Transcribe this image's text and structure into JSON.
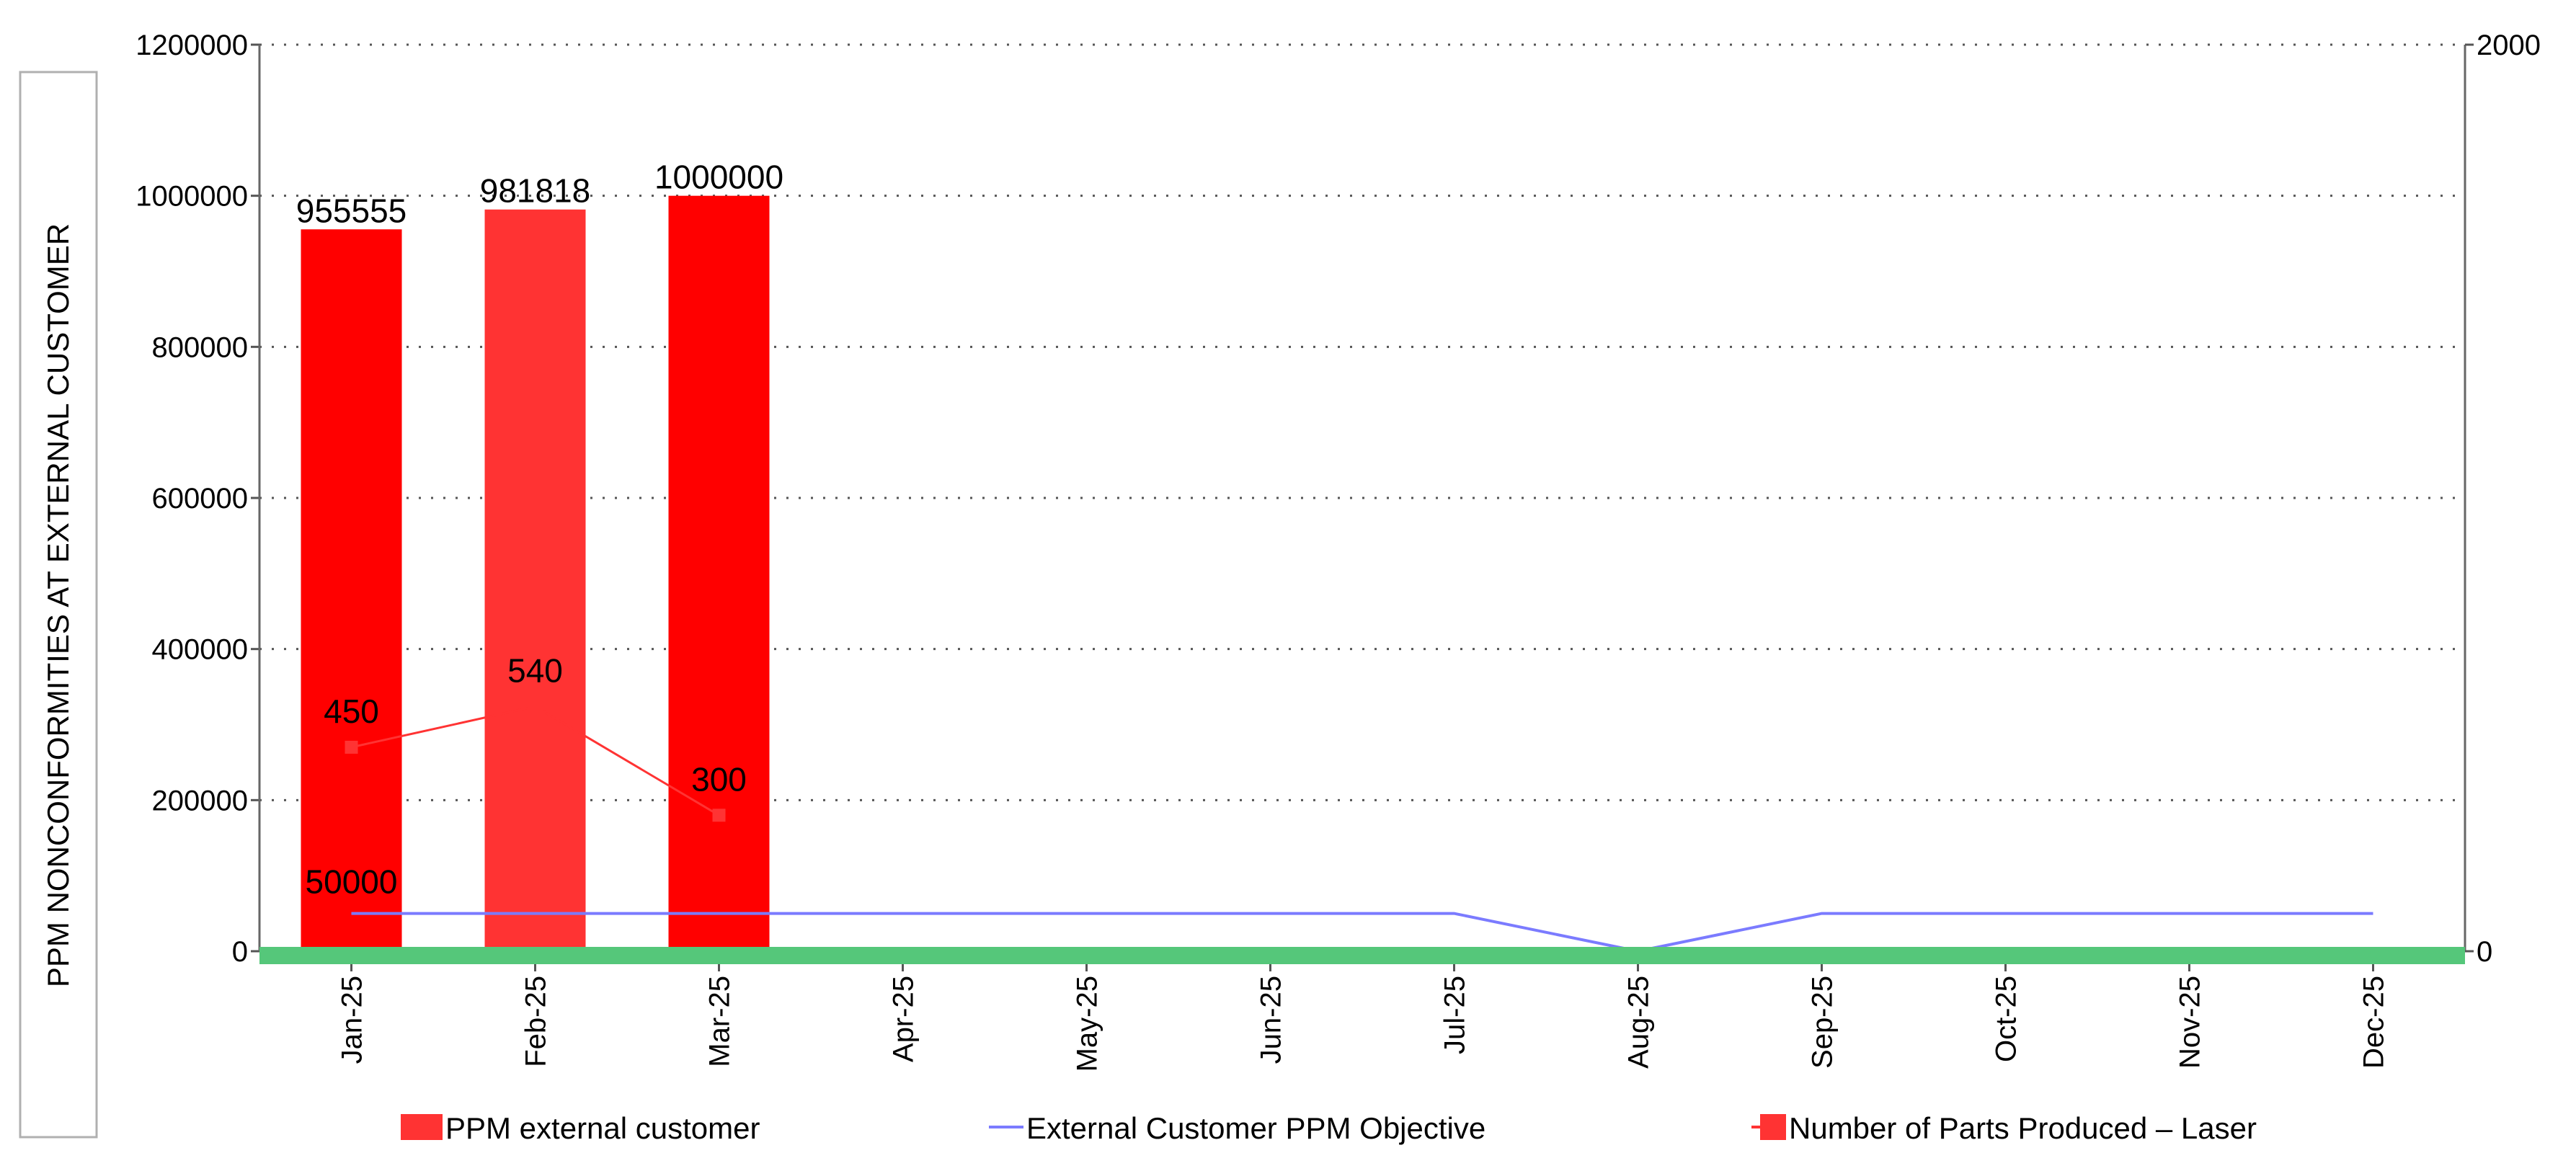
{
  "chart_data": {
    "type": "bar",
    "title": "",
    "ylabel": "PPM NONCONFORMITIES AT EXTERNAL CUSTOMER",
    "xlabel": "",
    "categories": [
      "Jan-25",
      "Feb-25",
      "Mar-25",
      "Apr-25",
      "May-25",
      "Jun-25",
      "Jul-25",
      "Aug-25",
      "Sep-25",
      "Oct-25",
      "Nov-25",
      "Dec-25"
    ],
    "ylim": [
      0,
      1200000
    ],
    "yticks": [
      "0",
      "200000",
      "400000",
      "600000",
      "800000",
      "1000000",
      "1200000"
    ],
    "y2lim": [
      0,
      2000
    ],
    "y2ticks": [
      "0",
      "2000"
    ],
    "grid": true,
    "legend_position": "bottom",
    "series": [
      {
        "name": "PPM external customer",
        "kind": "bar",
        "axis": "left",
        "values": [
          955555,
          981818,
          1000000,
          null,
          null,
          null,
          null,
          null,
          null,
          null,
          null,
          null
        ],
        "labels": [
          "955555",
          "981818",
          "1000000"
        ],
        "colors": [
          "#ff0000",
          "#ff3333",
          "#ff0000"
        ]
      },
      {
        "name": "External Customer PPM Objective",
        "kind": "line",
        "axis": "left",
        "values": [
          50000,
          50000,
          50000,
          50000,
          50000,
          50000,
          50000,
          0,
          50000,
          50000,
          50000,
          50000
        ],
        "labels": [
          "50000"
        ],
        "color": "#7b7bff"
      },
      {
        "name": "Number of Parts Produced – Laser",
        "kind": "line",
        "axis": "right",
        "values": [
          450,
          540,
          300,
          null,
          null,
          null,
          null,
          null,
          null,
          null,
          null,
          null
        ],
        "labels": [
          "450",
          "540",
          "300"
        ],
        "color": "#ff3333"
      }
    ],
    "baseline_color": "#55c77a"
  }
}
